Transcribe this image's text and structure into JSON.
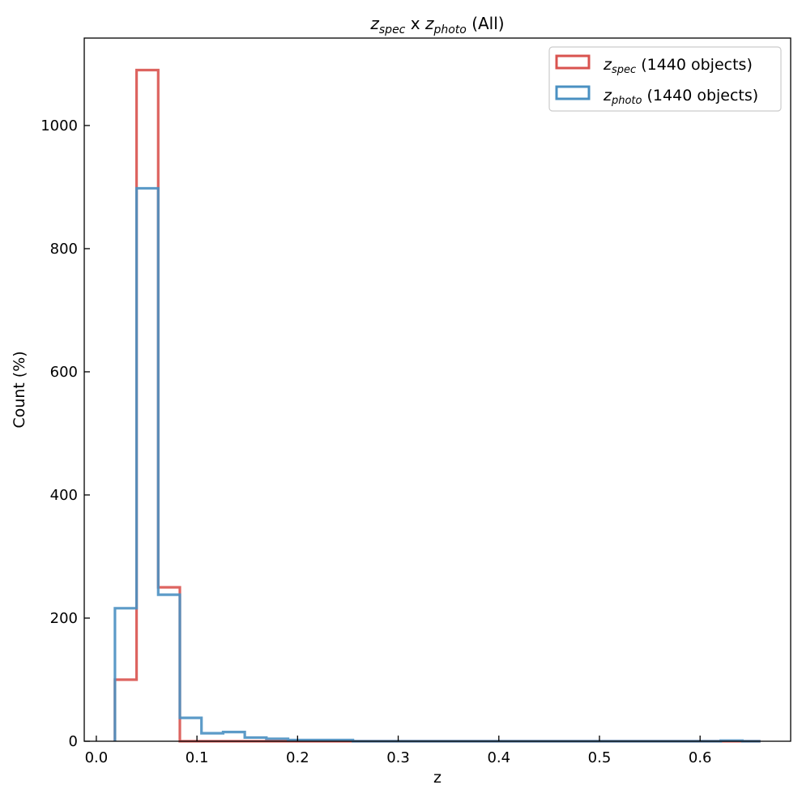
{
  "chart_data": {
    "type": "histogram-step",
    "title": "z_spec x z_photo (All)",
    "title_parts": {
      "z1": "z",
      "sub1": "spec",
      "mid": " x ",
      "z2": "z",
      "sub2": "photo",
      "tail": " (All)"
    },
    "xlabel": "z",
    "ylabel": "Count (%)",
    "xlim": [
      -0.012,
      0.69
    ],
    "ylim": [
      0,
      1142
    ],
    "xticks": [
      0.0,
      0.1,
      0.2,
      0.3,
      0.4,
      0.5,
      0.6
    ],
    "xtick_labels": [
      "0.0",
      "0.1",
      "0.2",
      "0.3",
      "0.4",
      "0.5",
      "0.6"
    ],
    "yticks": [
      0,
      200,
      400,
      600,
      800,
      1000
    ],
    "ytick_labels": [
      "0",
      "200",
      "400",
      "600",
      "800",
      "1000"
    ],
    "bin_edges": [
      0.0185,
      0.04,
      0.0615,
      0.083,
      0.1045,
      0.126,
      0.1475,
      0.169,
      0.1905,
      0.212,
      0.2335,
      0.255,
      0.2765,
      0.298,
      0.3195,
      0.341,
      0.3625,
      0.384,
      0.4055,
      0.427,
      0.4485,
      0.47,
      0.4915,
      0.513,
      0.5345,
      0.556,
      0.5775,
      0.599,
      0.6205,
      0.642,
      0.66
    ],
    "series": [
      {
        "name_main": "z",
        "name_sub": "spec",
        "name_rest": " (1440 objects)",
        "color": "#d9534f",
        "values": [
          100,
          1090,
          250,
          0,
          0,
          0,
          0,
          0,
          0,
          0,
          0,
          0,
          0,
          0,
          0,
          0,
          0,
          0,
          0,
          0,
          0,
          0,
          0,
          0,
          0,
          0,
          0,
          0,
          0,
          0
        ]
      },
      {
        "name_main": "z",
        "name_sub": "photo",
        "name_rest": " (1440 objects)",
        "color": "#4a90c2",
        "values": [
          216,
          898,
          238,
          38,
          13,
          15,
          6,
          4,
          2,
          2,
          2,
          0,
          0,
          0,
          0,
          0,
          0,
          0,
          0,
          0,
          0,
          0,
          0,
          0,
          0,
          0,
          0,
          0,
          1,
          0
        ]
      }
    ],
    "legend_position": "top-right",
    "grid": false
  }
}
